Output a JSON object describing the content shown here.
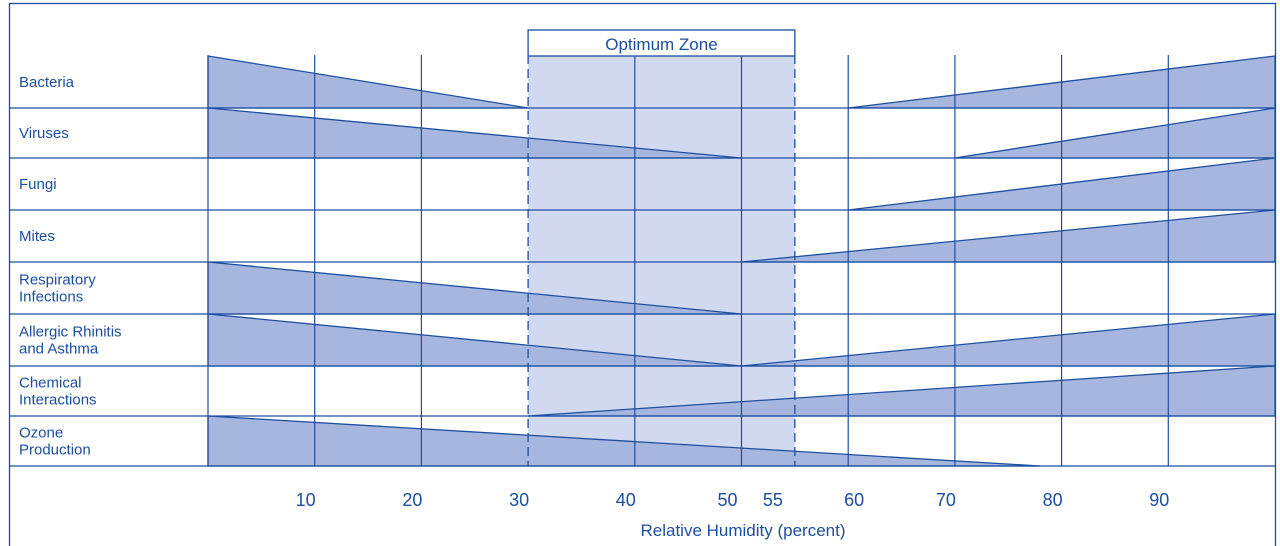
{
  "chart_data": {
    "type": "bar",
    "title": "",
    "xlabel": "Relative Humidity (percent)",
    "ylabel": "",
    "xlim": [
      0,
      100
    ],
    "x_ticks": [
      {
        "value": 10,
        "label": "10"
      },
      {
        "value": 20,
        "label": "20"
      },
      {
        "value": 30,
        "label": "30"
      },
      {
        "value": 40,
        "label": "40"
      },
      {
        "value": 50,
        "label": "50"
      },
      {
        "value": 55,
        "label": "55"
      },
      {
        "value": 60,
        "label": "60"
      },
      {
        "value": 70,
        "label": "70"
      },
      {
        "value": 80,
        "label": "80"
      },
      {
        "value": 90,
        "label": "90"
      }
    ],
    "optimum_zone": {
      "label": "Optimum Zone",
      "from": 30,
      "to": 55
    },
    "categories": [
      {
        "lines": [
          "Bacteria"
        ],
        "wedges": [
          {
            "from": 0,
            "to": 30,
            "peak": "left"
          },
          {
            "from": 60,
            "to": 100,
            "peak": "right"
          }
        ]
      },
      {
        "lines": [
          "Viruses"
        ],
        "wedges": [
          {
            "from": 0,
            "to": 50,
            "peak": "left"
          },
          {
            "from": 70,
            "to": 100,
            "peak": "right"
          }
        ]
      },
      {
        "lines": [
          "Fungi"
        ],
        "wedges": [
          {
            "from": 60,
            "to": 100,
            "peak": "right"
          }
        ]
      },
      {
        "lines": [
          "Mites"
        ],
        "wedges": [
          {
            "from": 50,
            "to": 100,
            "peak": "right"
          }
        ]
      },
      {
        "lines": [
          "Respiratory",
          "Infections"
        ],
        "wedges": [
          {
            "from": 0,
            "to": 50,
            "peak": "left"
          }
        ]
      },
      {
        "lines": [
          "Allergic Rhinitis",
          "and Asthma"
        ],
        "wedges": [
          {
            "from": 0,
            "to": 50,
            "peak": "left"
          },
          {
            "from": 50,
            "to": 100,
            "peak": "right"
          }
        ]
      },
      {
        "lines": [
          "Chemical",
          "Interactions"
        ],
        "wedges": [
          {
            "from": 30,
            "to": 100,
            "peak": "right"
          }
        ]
      },
      {
        "lines": [
          "Ozone",
          "Production"
        ],
        "wedges": [
          {
            "from": 0,
            "to": 78,
            "peak": "left"
          }
        ]
      }
    ],
    "grid": true,
    "colors": {
      "line": "#1d4fa0",
      "wedge": "#a7b6df",
      "zone": "#d0d9ef",
      "text": "#1d4fa0"
    }
  }
}
